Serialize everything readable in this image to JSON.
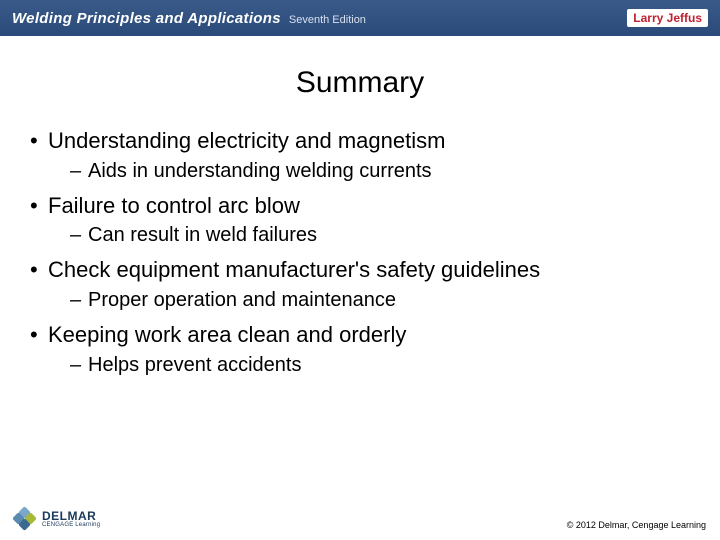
{
  "header": {
    "book_title": "Welding Principles and Applications",
    "edition": "Seventh Edition",
    "author": "Larry Jeffus",
    "bg_gradient_top": "#3a5a8a",
    "bg_gradient_bottom": "#2a4a7a",
    "author_color": "#c02030"
  },
  "slide": {
    "title": "Summary",
    "title_fontsize": 30,
    "bullets": [
      {
        "text": "Understanding electricity and magnetism",
        "sub": [
          "Aids  in understanding welding currents"
        ]
      },
      {
        "text": "Failure to control arc blow",
        "sub": [
          "Can result in weld failures"
        ]
      },
      {
        "text": "Check equipment manufacturer's safety guidelines",
        "sub": [
          "Proper operation and maintenance"
        ]
      },
      {
        "text": "Keeping work area clean and orderly",
        "sub": [
          "Helps prevent accidents"
        ]
      }
    ],
    "body_fontsize": 22,
    "sub_fontsize": 20,
    "text_color": "#000000",
    "background_color": "#ffffff"
  },
  "footer": {
    "logo_name": "DELMAR",
    "logo_sub": "CENGAGE Learning",
    "logo_colors": [
      "#7aa8c9",
      "#5a8ab0",
      "#a8b838",
      "#3a6a90"
    ],
    "copyright": "© 2012 Delmar, Cengage Learning"
  }
}
